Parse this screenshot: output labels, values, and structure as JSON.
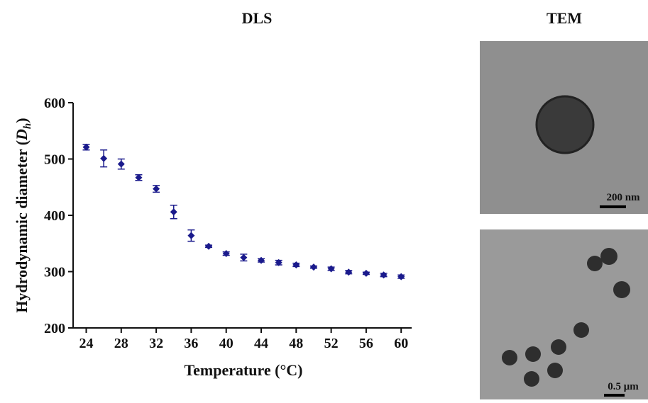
{
  "chart_data": {
    "type": "scatter",
    "title": "DLS",
    "x_label": "Temperature (°C)",
    "y_label": {
      "text": "Hydrodynamic diameter (",
      "symbol": "D",
      "subscript": "h",
      "close": ")"
    },
    "x": [
      24,
      26,
      28,
      30,
      32,
      34,
      36,
      38,
      40,
      42,
      44,
      46,
      48,
      50,
      52,
      54,
      56,
      58,
      60
    ],
    "series": [
      {
        "color": "#1a1a8c",
        "values": [
          521,
          501,
          491,
          467,
          447,
          406,
          364,
          345,
          332,
          325,
          320,
          316,
          312,
          308,
          305,
          299,
          297,
          294,
          291
        ],
        "errors": [
          5,
          15,
          9,
          5,
          6,
          12,
          10,
          2,
          3,
          6,
          3,
          4,
          3,
          2,
          3,
          3,
          2,
          3,
          3
        ]
      }
    ],
    "xlim": [
      22.5,
      61.2
    ],
    "ylim": [
      200,
      600
    ],
    "xticks": [
      24,
      28,
      32,
      36,
      40,
      44,
      48,
      52,
      56,
      60
    ],
    "yticks": [
      200,
      300,
      400,
      500,
      600
    ]
  },
  "tem": {
    "title": "TEM",
    "images": [
      {
        "scale_bar": "200 nm"
      },
      {
        "scale_bar": "0.5 μm"
      }
    ]
  }
}
